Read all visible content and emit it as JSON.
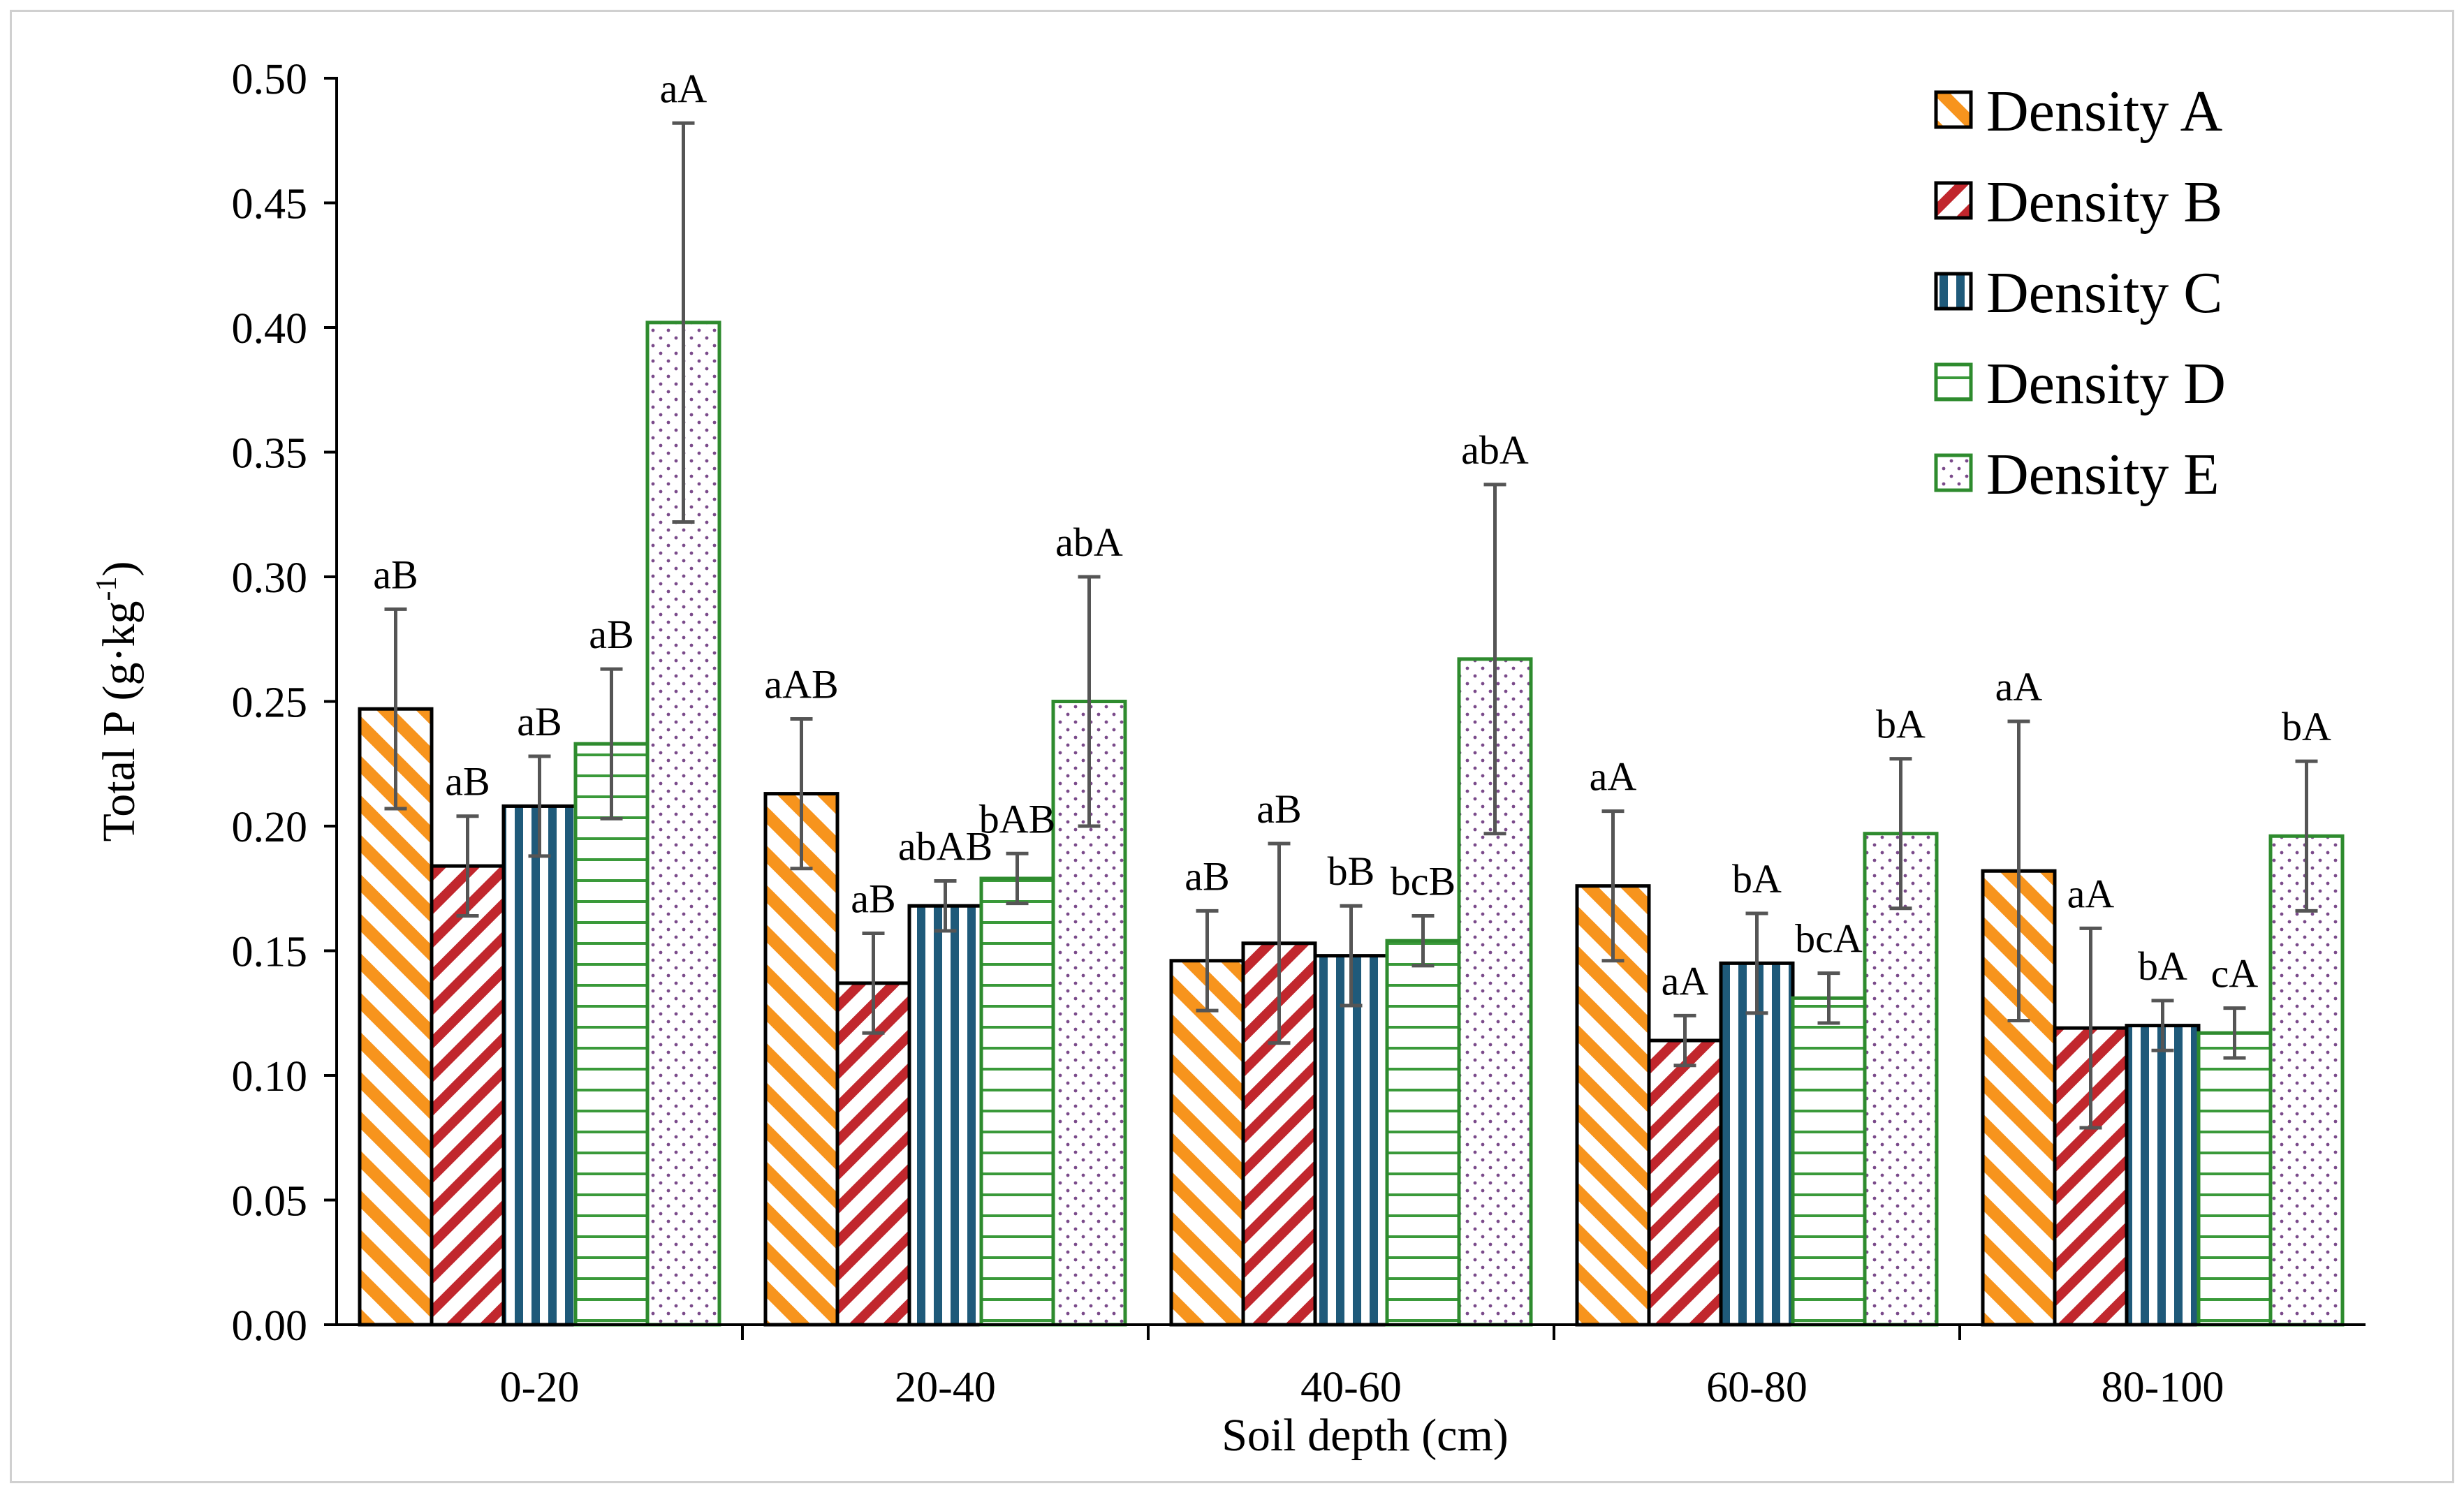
{
  "chart_data": {
    "type": "bar",
    "title": "",
    "xlabel": "Soil depth (cm)",
    "ylabel": "Total P (g·kg",
    "ylabel_superscript": "-1",
    "ylabel_suffix": ")",
    "ylim": [
      0,
      0.5
    ],
    "ytick_step": 0.05,
    "yticks": [
      "0.00",
      "0.05",
      "0.10",
      "0.15",
      "0.20",
      "0.25",
      "0.30",
      "0.35",
      "0.40",
      "0.45",
      "0.50"
    ],
    "categories": [
      "0-20",
      "20-40",
      "40-60",
      "60-80",
      "80-100"
    ],
    "legend_position": "top-right",
    "series": [
      {
        "name": "Density A",
        "pattern": "diagonal-orange",
        "color": "#F7941D",
        "values": [
          0.247,
          0.213,
          0.146,
          0.176,
          0.182
        ],
        "errors": [
          0.04,
          0.03,
          0.02,
          0.03,
          0.06
        ],
        "labels": [
          "aB",
          "aAB",
          "aB",
          "aA",
          "aA"
        ]
      },
      {
        "name": "Density B",
        "pattern": "diagonal-red",
        "color": "#C1272D",
        "values": [
          0.184,
          0.137,
          0.153,
          0.114,
          0.119
        ],
        "errors": [
          0.02,
          0.02,
          0.04,
          0.01,
          0.04
        ],
        "labels": [
          "aB",
          "aB",
          "aB",
          "aA",
          "aA"
        ]
      },
      {
        "name": "Density C",
        "pattern": "vertical-blue",
        "color": "#1F5A7A",
        "values": [
          0.208,
          0.168,
          0.148,
          0.145,
          0.12
        ],
        "errors": [
          0.02,
          0.01,
          0.02,
          0.02,
          0.01
        ],
        "labels": [
          "aB",
          "abAB",
          "bB",
          "bA",
          "bA"
        ]
      },
      {
        "name": "Density D",
        "pattern": "horizontal-green",
        "color": "#3A9A3A",
        "values": [
          0.233,
          0.179,
          0.154,
          0.131,
          0.117
        ],
        "errors": [
          0.03,
          0.01,
          0.01,
          0.01,
          0.01
        ],
        "labels": [
          "aB",
          "bAB",
          "bcB",
          "bcA",
          "cA"
        ]
      },
      {
        "name": "Density E",
        "pattern": "dots-purple",
        "color": "#3A9A3A",
        "values": [
          0.402,
          0.25,
          0.267,
          0.197,
          0.196
        ],
        "errors": [
          0.08,
          0.05,
          0.07,
          0.03,
          0.03
        ],
        "labels": [
          "aA",
          "abA",
          "abA",
          "bA",
          "bA"
        ]
      }
    ]
  }
}
